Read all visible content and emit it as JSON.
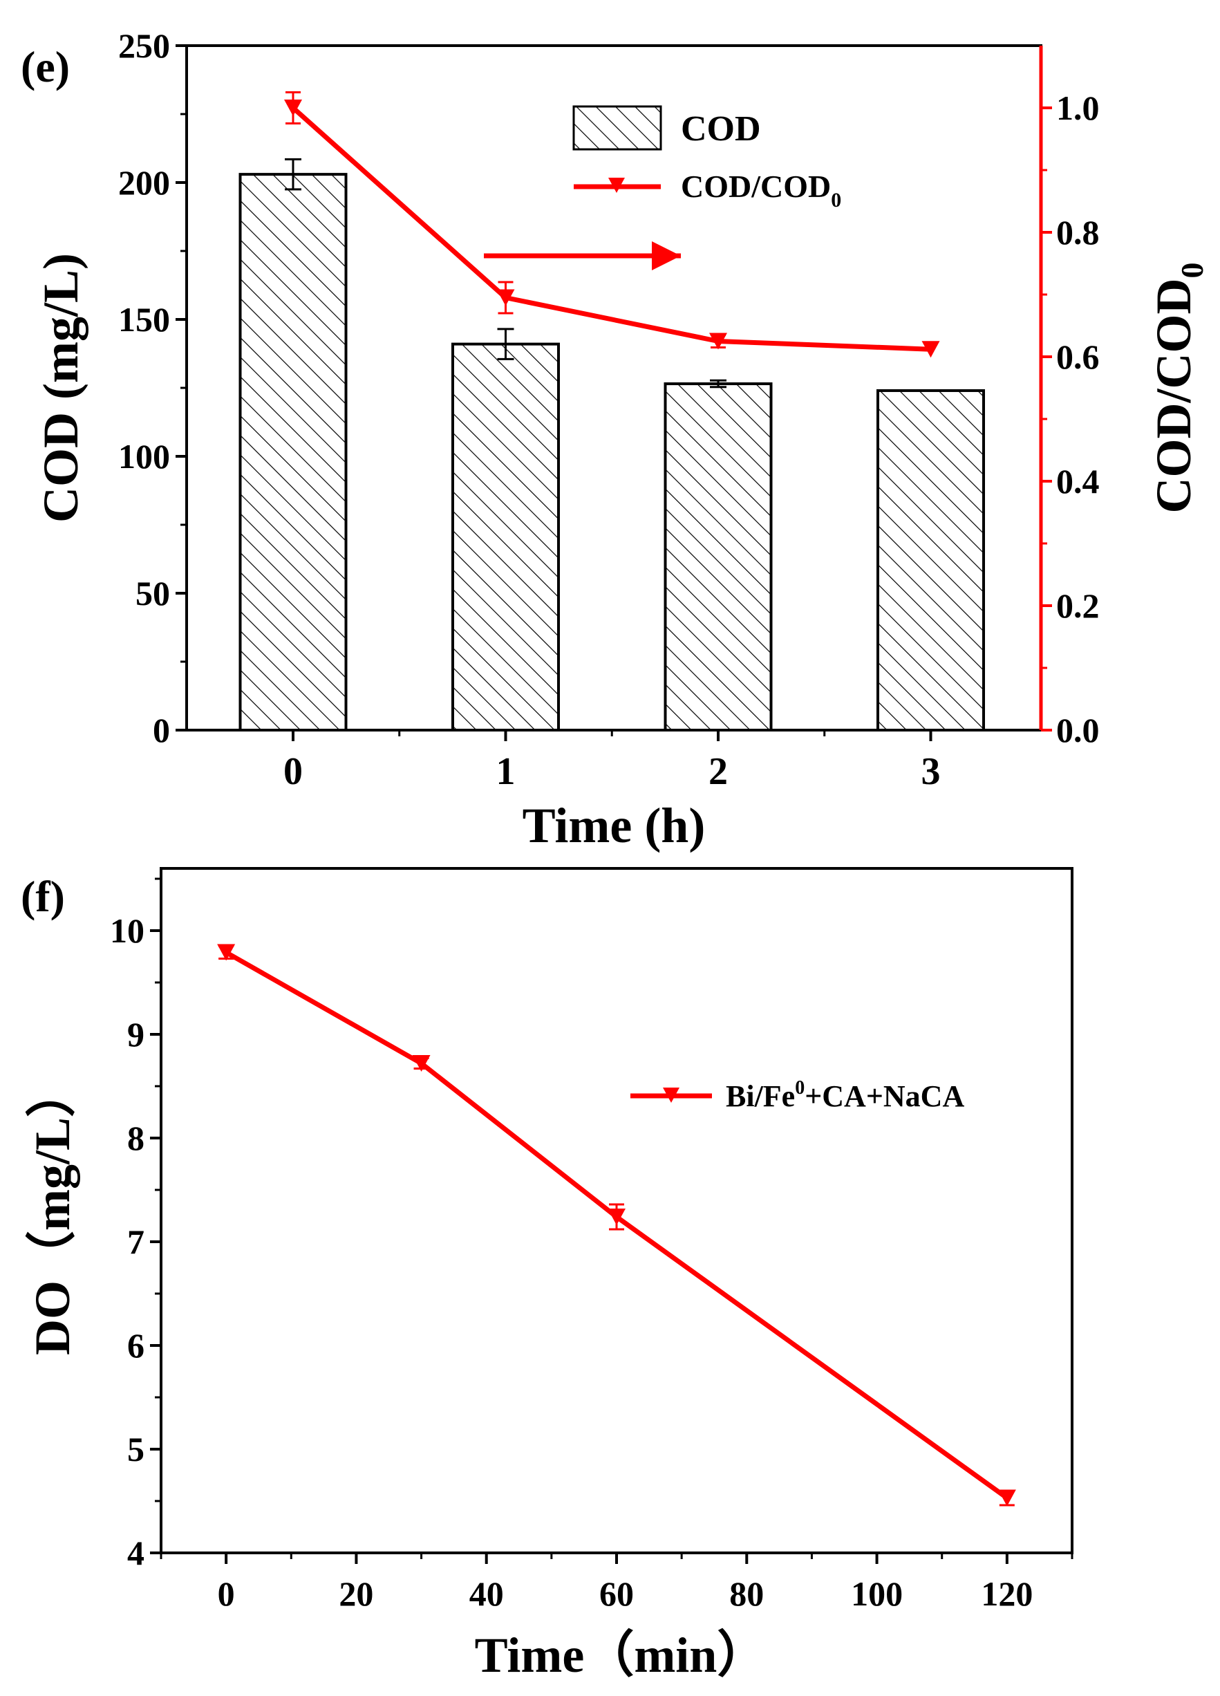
{
  "colors": {
    "axis": "#000000",
    "accent": "#ff0000",
    "bar_fill": "#ffffff",
    "hatch": "#000000"
  },
  "panels": {
    "e": {
      "label": "(e)"
    },
    "f": {
      "label": "(f)"
    }
  },
  "chart_data": [
    {
      "id": "e",
      "type": "bar",
      "title": "",
      "categories": [
        "0",
        "1",
        "2",
        "3"
      ],
      "xlabel": "Time (h)",
      "ylabel": "COD (mg/L)",
      "ylim": [
        0,
        250
      ],
      "yticks": [
        "0",
        "50",
        "100",
        "150",
        "200",
        "250"
      ],
      "y2label": {
        "main": "COD/COD",
        "sub": "0"
      },
      "y2lim": [
        0,
        1.1
      ],
      "y2ticks": [
        "0.0",
        "0.2",
        "0.4",
        "0.6",
        "0.8",
        "1.0"
      ],
      "series": [
        {
          "name": "COD",
          "kind": "bar",
          "axis": "left",
          "values": [
            203,
            141,
            126.5,
            124
          ],
          "errors": [
            5.5,
            5.5,
            1.2,
            0
          ]
        },
        {
          "name": "COD/COD0",
          "kind": "line",
          "axis": "right",
          "values": [
            1.0,
            0.695,
            0.625,
            0.612
          ],
          "errors": [
            0.025,
            0.025,
            0.01,
            0
          ]
        }
      ],
      "legend": [
        {
          "kind": "bar",
          "label": "COD"
        },
        {
          "kind": "line",
          "label": "COD/COD",
          "sub": "0"
        }
      ],
      "legend_position": "top-right",
      "annotation": "arrow pointing to right axis"
    },
    {
      "id": "f",
      "type": "line",
      "title": "",
      "xlabel": "Time（min）",
      "ylabel": "DO（mg/L）",
      "xlim": [
        -10,
        130
      ],
      "ylim": [
        4,
        10.6
      ],
      "xticks": [
        "0",
        "20",
        "40",
        "60",
        "80",
        "100",
        "120"
      ],
      "yticks": [
        "4",
        "5",
        "6",
        "7",
        "8",
        "9",
        "10"
      ],
      "series": [
        {
          "name": "Bi/Fe0+CA+NaCA",
          "x": [
            0,
            30,
            60,
            120
          ],
          "y": [
            9.79,
            8.72,
            7.24,
            4.53
          ],
          "errors": [
            0.06,
            0.05,
            0.12,
            0.07
          ]
        }
      ],
      "legend": [
        {
          "label_pre": "Bi/Fe",
          "sup": "0",
          "label_post": "+CA+NaCA"
        }
      ],
      "legend_position": "top-right"
    }
  ]
}
